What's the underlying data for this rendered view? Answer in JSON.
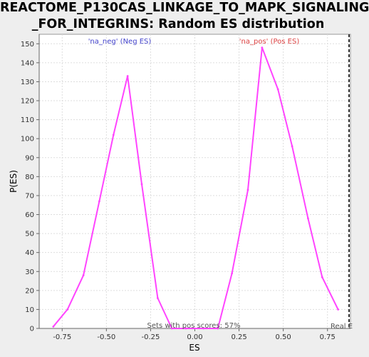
{
  "title_lines": [
    "REACTOME_P130CAS_LINKAGE_TO_MAPK_SIGNALING",
    "_FOR_INTEGRINS: Random ES distribution"
  ],
  "colors": {
    "background": "#eeeeee",
    "plot_background": "#ffffff",
    "curve": "#ff44ff",
    "neg_label": "#4444cc",
    "pos_label": "#dd4444",
    "grid": "#dddddd",
    "real_line": "#333333"
  },
  "chart_data": {
    "type": "line",
    "xlabel": "ES",
    "ylabel": "P(ES)",
    "xlim": [
      -0.88,
      0.88
    ],
    "ylim": [
      0,
      155
    ],
    "x_ticks": [
      -0.75,
      -0.5,
      -0.25,
      0.0,
      0.25,
      0.5,
      0.75
    ],
    "x_tick_labels": [
      "-0.75",
      "-0.50",
      "-0.25",
      "0.00",
      "0.25",
      "0.50",
      "0.75"
    ],
    "y_ticks": [
      0,
      10,
      20,
      30,
      40,
      50,
      60,
      70,
      80,
      90,
      100,
      110,
      120,
      130,
      140,
      150
    ],
    "grid": true,
    "series": [
      {
        "x": [
          -0.8,
          -0.72,
          -0.63,
          -0.54,
          -0.46,
          -0.38,
          -0.3,
          -0.21,
          -0.13,
          -0.05,
          0.05,
          0.13,
          0.21,
          0.3,
          0.38,
          0.47,
          0.55,
          0.64,
          0.72,
          0.81
        ],
        "y": [
          1,
          10,
          28,
          67,
          102,
          133,
          76,
          16,
          0,
          0,
          0,
          0,
          29,
          73,
          148,
          126,
          96,
          58,
          27,
          10
        ]
      }
    ],
    "annotations": {
      "neg_label": "'na_neg' (Neg ES)",
      "pos_label": "'na_pos' (Pos ES)",
      "pos_fraction": "Sets with pos scores: 57%",
      "real_label": "Real E"
    },
    "real_es_x": 0.88
  }
}
